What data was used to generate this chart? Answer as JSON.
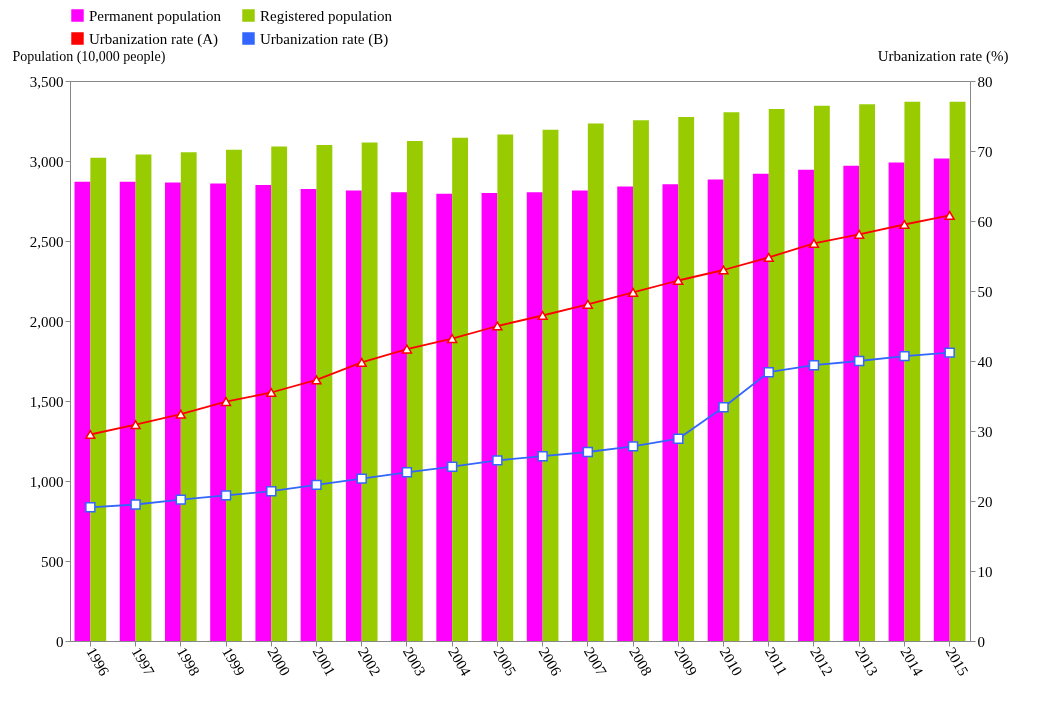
{
  "chart_data": {
    "type": "bar",
    "categories": [
      "1996",
      "1997",
      "1998",
      "1999",
      "2000",
      "2001",
      "2002",
      "2003",
      "2004",
      "2005",
      "2006",
      "2007",
      "2008",
      "2009",
      "2010",
      "2011",
      "2012",
      "2013",
      "2014",
      "2015"
    ],
    "ylabel": "Population (10,000 people)",
    "y2label": "Urbanization rate (%)",
    "ylim": [
      0,
      3500
    ],
    "yticks": [
      0,
      500,
      {
        "value": 1000,
        "label": "1,000"
      },
      {
        "value": 1500,
        "label": "1,500"
      },
      {
        "value": 2000,
        "label": "2,000"
      },
      {
        "value": 2500,
        "label": "2,500"
      },
      {
        "value": 3000,
        "label": "3,000"
      },
      {
        "value": 3500,
        "label": "3,500"
      }
    ],
    "y2lim": [
      0,
      80
    ],
    "y2ticks": [
      0,
      10,
      20,
      30,
      40,
      50,
      60,
      70,
      80
    ],
    "legend": "top",
    "grid": false,
    "series": [
      {
        "name": "Permanent population",
        "color": "#ff00ff",
        "values": [
          2870,
          2870,
          2865,
          2860,
          2850,
          2825,
          2815,
          2805,
          2795,
          2800,
          2805,
          2815,
          2840,
          2855,
          2885,
          2920,
          2945,
          2970,
          2990,
          3015
        ]
      },
      {
        "name": "Registered population",
        "color": "#99cc00",
        "values": [
          3020,
          3040,
          3055,
          3070,
          3090,
          3100,
          3115,
          3125,
          3145,
          3165,
          3195,
          3235,
          3255,
          3275,
          3305,
          3325,
          3345,
          3355,
          3370,
          3370
        ]
      },
      {
        "name": "Urbanization rate (A)",
        "type": "line",
        "axis": "y2",
        "marker": "triangle",
        "color": "#ff0000",
        "values": [
          29.5,
          30.9,
          32.4,
          34.2,
          35.5,
          37.3,
          39.8,
          41.7,
          43.2,
          45.0,
          46.5,
          48.1,
          49.8,
          51.5,
          53.0,
          54.8,
          56.8,
          58.1,
          59.5,
          60.8
        ]
      },
      {
        "name": "Urbanization rate (B)",
        "type": "line",
        "axis": "y2",
        "marker": "square",
        "color": "#3366ff",
        "values": [
          19.1,
          19.5,
          20.2,
          20.8,
          21.4,
          22.3,
          23.2,
          24.1,
          24.9,
          25.8,
          26.4,
          27.0,
          27.8,
          28.9,
          33.4,
          38.4,
          39.4,
          40.0,
          40.7,
          41.2
        ]
      }
    ]
  }
}
